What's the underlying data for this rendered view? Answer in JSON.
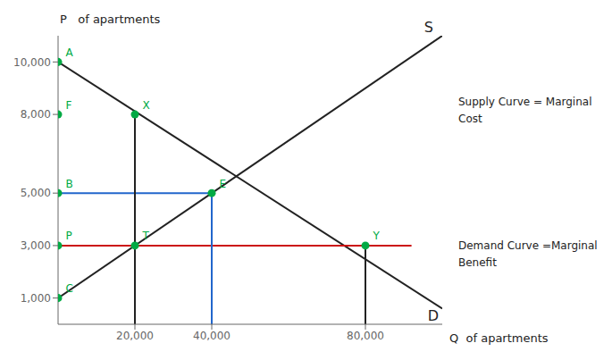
{
  "chart_data": {
    "type": "line",
    "x_label": "Q  of apartments",
    "y_label": "P   of apartments",
    "xlim": [
      0,
      100000
    ],
    "xticks": [
      {
        "value": 20000,
        "label": "20,000"
      },
      {
        "value": 40000,
        "label": "40,000"
      },
      {
        "value": 80000,
        "label": "80,000"
      }
    ],
    "ylim": [
      0,
      11000
    ],
    "yticks": [
      {
        "value": 1000,
        "label": "1,000"
      },
      {
        "value": 3000,
        "label": "3,000"
      },
      {
        "value": 5000,
        "label": "5,000"
      },
      {
        "value": 8000,
        "label": "8,000"
      },
      {
        "value": 10000,
        "label": "10,000"
      }
    ],
    "grid": false,
    "series": [
      {
        "name": "S",
        "x": [
          0,
          100000
        ],
        "values": [
          1000,
          11000
        ],
        "color": "#222222"
      },
      {
        "name": "D",
        "x": [
          0,
          100000
        ],
        "values": [
          10000,
          600
        ],
        "color": "#222222"
      },
      {
        "x": [
          0,
          92000
        ],
        "values": [
          3000,
          3000
        ],
        "color": "#cc1111"
      },
      {
        "x": [
          0,
          40000
        ],
        "values": [
          5000,
          5000
        ],
        "color": "#2266cc"
      },
      {
        "x": [
          40000,
          40000
        ],
        "values": [
          0,
          5000
        ],
        "color": "#2266cc"
      },
      {
        "x": [
          20000,
          20000
        ],
        "values": [
          0,
          8000
        ],
        "color": "#222222"
      },
      {
        "x": [
          80000,
          80000
        ],
        "values": [
          0,
          3000
        ],
        "color": "#222222"
      },
      {
        "type": "scatter",
        "marker": "circle",
        "color": "#00aa44",
        "x": [
          0,
          0,
          0,
          0,
          0,
          20000,
          40000,
          20000,
          80000
        ],
        "values": [
          10000,
          8000,
          5000,
          3000,
          1000,
          8000,
          5000,
          3000,
          3000
        ],
        "labels": [
          "A",
          "F",
          "B",
          "P",
          "C",
          "X",
          "E",
          "T",
          "Y"
        ]
      }
    ],
    "annotations": [
      "Supply Curve = Marginal\nCost",
      "Demand Curve =Marginal\nBenefit"
    ]
  }
}
